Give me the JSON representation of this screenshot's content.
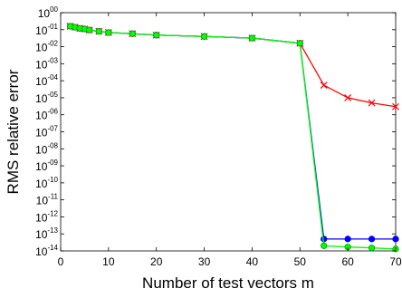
{
  "chart_data": {
    "type": "line",
    "title": "",
    "xlabel": "Number of test vectors m",
    "ylabel": "RMS relative error",
    "xlim": [
      0,
      70
    ],
    "ylim_log10": [
      -14,
      0
    ],
    "y_scale": "log",
    "grid": false,
    "legend": "none",
    "x_ticks": [
      0,
      10,
      20,
      30,
      40,
      50,
      60,
      70
    ],
    "y_tick_base": "10",
    "y_tick_exponents": [
      "00",
      "-01",
      "-02",
      "-03",
      "-04",
      "-05",
      "-06",
      "-07",
      "-08",
      "-09",
      "-10",
      "-11",
      "-12",
      "-13",
      "-14"
    ],
    "series": [
      {
        "color": "#ff0000",
        "marker": "x",
        "x": [
          2,
          3,
          4,
          5,
          6,
          8,
          10,
          15,
          20,
          30,
          40,
          50,
          55,
          60,
          65,
          70
        ],
        "y": [
          0.16,
          0.14,
          0.12,
          0.11,
          0.095,
          0.08,
          0.068,
          0.058,
          0.048,
          0.04,
          0.032,
          0.016,
          5.5e-05,
          1e-05,
          5e-06,
          3e-06
        ]
      },
      {
        "color": "#0000ff",
        "marker": "o",
        "x": [
          2,
          3,
          4,
          5,
          6,
          8,
          10,
          15,
          20,
          30,
          40,
          50,
          55,
          60,
          65,
          70
        ],
        "y": [
          0.16,
          0.14,
          0.12,
          0.11,
          0.095,
          0.08,
          0.068,
          0.058,
          0.048,
          0.04,
          0.032,
          0.016,
          5e-14,
          5e-14,
          5e-14,
          5e-14
        ]
      },
      {
        "color": "#00ff00",
        "marker": "o",
        "x": [
          2,
          3,
          4,
          5,
          6,
          8,
          10,
          15,
          20,
          30,
          40,
          50,
          55,
          60,
          65,
          70
        ],
        "y": [
          0.16,
          0.14,
          0.12,
          0.11,
          0.095,
          0.08,
          0.068,
          0.058,
          0.048,
          0.04,
          0.032,
          0.016,
          2e-14,
          1.7e-14,
          1.5e-14,
          1.3e-14
        ]
      }
    ]
  }
}
